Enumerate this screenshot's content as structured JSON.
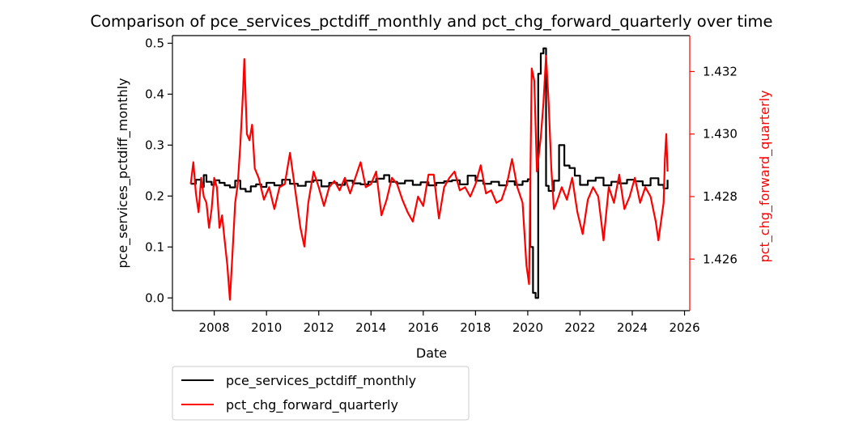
{
  "chart_data": {
    "type": "line",
    "title": "Comparison of pce_services_pctdiff_monthly and pct_chg_forward_quarterly over time",
    "xlabel": "Date",
    "ylabel_left": "pce_services_pctdiff_monthly",
    "ylabel_right": "pct_chg_forward_quarterly",
    "xlim": [
      2006.4,
      2026.2
    ],
    "ylim_left": [
      -0.025,
      0.515
    ],
    "ylim_right": [
      1.42435,
      1.43315
    ],
    "x_ticks": [
      2008,
      2010,
      2012,
      2014,
      2016,
      2018,
      2020,
      2022,
      2024,
      2026
    ],
    "y_ticks_left": [
      0.0,
      0.1,
      0.2,
      0.3,
      0.4,
      0.5
    ],
    "y_ticks_right": [
      1.426,
      1.428,
      1.43,
      1.432
    ],
    "grid": false,
    "legend": {
      "placement": "below-left"
    },
    "series": [
      {
        "name": "pce_services_pctdiff_monthly",
        "axis": "left",
        "color": "#000000",
        "style": "step",
        "x": [
          2007.1,
          2007.3,
          2007.5,
          2007.6,
          2007.7,
          2007.9,
          2008.0,
          2008.2,
          2008.4,
          2008.6,
          2008.8,
          2009.0,
          2009.2,
          2009.4,
          2009.6,
          2009.8,
          2010.0,
          2010.3,
          2010.6,
          2010.9,
          2011.2,
          2011.5,
          2011.8,
          2012.1,
          2012.4,
          2012.7,
          2013.0,
          2013.3,
          2013.6,
          2013.9,
          2014.2,
          2014.5,
          2014.7,
          2015.0,
          2015.3,
          2015.6,
          2015.9,
          2016.2,
          2016.5,
          2016.8,
          2017.1,
          2017.4,
          2017.7,
          2018.0,
          2018.3,
          2018.6,
          2018.9,
          2019.2,
          2019.5,
          2019.8,
          2020.0,
          2020.1,
          2020.2,
          2020.3,
          2020.4,
          2020.5,
          2020.6,
          2020.7,
          2020.8,
          2021.0,
          2021.2,
          2021.4,
          2021.6,
          2021.8,
          2022.0,
          2022.3,
          2022.6,
          2022.9,
          2023.2,
          2023.5,
          2023.8,
          2024.1,
          2024.4,
          2024.7,
          2025.0,
          2025.2,
          2025.35
        ],
        "values": [
          0.224,
          0.232,
          0.218,
          0.241,
          0.228,
          0.222,
          0.231,
          0.226,
          0.221,
          0.217,
          0.23,
          0.214,
          0.209,
          0.219,
          0.223,
          0.218,
          0.226,
          0.221,
          0.232,
          0.224,
          0.22,
          0.228,
          0.231,
          0.219,
          0.226,
          0.222,
          0.23,
          0.225,
          0.223,
          0.228,
          0.234,
          0.241,
          0.228,
          0.225,
          0.23,
          0.222,
          0.227,
          0.221,
          0.226,
          0.229,
          0.231,
          0.223,
          0.24,
          0.23,
          0.224,
          0.228,
          0.221,
          0.229,
          0.222,
          0.229,
          0.233,
          0.1,
          0.01,
          0.0,
          0.44,
          0.48,
          0.49,
          0.22,
          0.21,
          0.23,
          0.3,
          0.26,
          0.255,
          0.24,
          0.222,
          0.23,
          0.236,
          0.221,
          0.228,
          0.225,
          0.232,
          0.229,
          0.221,
          0.235,
          0.222,
          0.215,
          0.232
        ]
      },
      {
        "name": "pct_chg_forward_quarterly",
        "axis": "right",
        "color": "#ff0000",
        "style": "line",
        "x": [
          2007.1,
          2007.2,
          2007.3,
          2007.4,
          2007.5,
          2007.6,
          2007.7,
          2007.8,
          2007.9,
          2008.0,
          2008.1,
          2008.2,
          2008.3,
          2008.4,
          2008.5,
          2008.6,
          2008.7,
          2008.8,
          2008.9,
          2009.0,
          2009.1,
          2009.15,
          2009.25,
          2009.35,
          2009.45,
          2009.55,
          2009.7,
          2009.9,
          2010.1,
          2010.3,
          2010.5,
          2010.7,
          2010.9,
          2011.1,
          2011.3,
          2011.45,
          2011.6,
          2011.8,
          2012.0,
          2012.2,
          2012.4,
          2012.6,
          2012.8,
          2013.0,
          2013.2,
          2013.4,
          2013.6,
          2013.8,
          2014.0,
          2014.2,
          2014.4,
          2014.6,
          2014.8,
          2015.0,
          2015.2,
          2015.4,
          2015.6,
          2015.8,
          2016.0,
          2016.2,
          2016.4,
          2016.6,
          2016.8,
          2017.0,
          2017.2,
          2017.4,
          2017.6,
          2017.8,
          2018.0,
          2018.2,
          2018.4,
          2018.6,
          2018.8,
          2019.0,
          2019.2,
          2019.4,
          2019.6,
          2019.8,
          2019.95,
          2020.05,
          2020.15,
          2020.25,
          2020.35,
          2020.5,
          2020.6,
          2020.7,
          2020.8,
          2020.9,
          2021.0,
          2021.1,
          2021.3,
          2021.5,
          2021.7,
          2021.9,
          2022.1,
          2022.3,
          2022.5,
          2022.7,
          2022.9,
          2023.1,
          2023.3,
          2023.5,
          2023.7,
          2023.9,
          2024.1,
          2024.3,
          2024.5,
          2024.7,
          2024.9,
          2025.0,
          2025.1,
          2025.2,
          2025.25,
          2025.3,
          2025.35
        ],
        "values": [
          1.4284,
          1.4291,
          1.4281,
          1.4275,
          1.4286,
          1.428,
          1.4278,
          1.427,
          1.4276,
          1.4286,
          1.4283,
          1.427,
          1.4274,
          1.4266,
          1.4258,
          1.4247,
          1.4262,
          1.4278,
          1.4284,
          1.4297,
          1.4313,
          1.4324,
          1.43,
          1.4298,
          1.4303,
          1.4289,
          1.4286,
          1.4279,
          1.4283,
          1.4276,
          1.4283,
          1.4284,
          1.4294,
          1.4282,
          1.427,
          1.4264,
          1.4278,
          1.4288,
          1.4283,
          1.4277,
          1.4283,
          1.4285,
          1.4282,
          1.4286,
          1.4281,
          1.4286,
          1.4291,
          1.4283,
          1.4284,
          1.4288,
          1.4274,
          1.4279,
          1.4286,
          1.4284,
          1.4279,
          1.4275,
          1.4272,
          1.428,
          1.4277,
          1.4287,
          1.4287,
          1.4273,
          1.4283,
          1.4286,
          1.4288,
          1.4282,
          1.4283,
          1.428,
          1.4284,
          1.429,
          1.4281,
          1.4282,
          1.4278,
          1.4279,
          1.4284,
          1.4292,
          1.4283,
          1.4278,
          1.4258,
          1.4252,
          1.4321,
          1.4317,
          1.4288,
          1.4299,
          1.431,
          1.4325,
          1.431,
          1.4289,
          1.4276,
          1.4278,
          1.4283,
          1.4279,
          1.4286,
          1.4275,
          1.4268,
          1.4279,
          1.4283,
          1.428,
          1.4266,
          1.4283,
          1.4278,
          1.4287,
          1.4276,
          1.428,
          1.4286,
          1.4278,
          1.4283,
          1.428,
          1.4272,
          1.4266,
          1.4272,
          1.4278,
          1.4292,
          1.43,
          1.4288
        ]
      }
    ]
  }
}
